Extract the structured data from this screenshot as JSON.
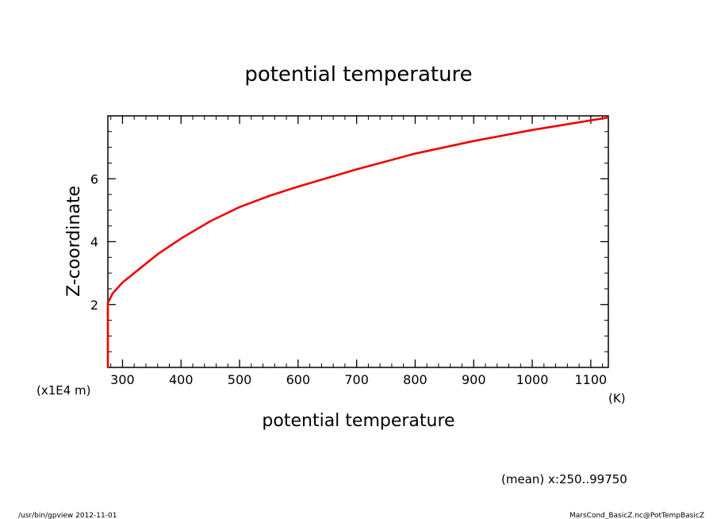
{
  "chart_data": {
    "type": "line",
    "title": "potential temperature",
    "xlabel": "potential temperature",
    "xunit": "(K)",
    "ylabel": "Z-coordinate",
    "yunit": "(x1E4 m)",
    "xlim": [
      275,
      1130
    ],
    "ylim": [
      0,
      8
    ],
    "xticks": [
      300,
      400,
      500,
      600,
      700,
      800,
      900,
      1000,
      1100
    ],
    "yticks": [
      2,
      4,
      6
    ],
    "grid": false,
    "series": [
      {
        "color": "#ee0000",
        "x": [
          275,
          275,
          275,
          283,
          300,
          330,
          360,
          400,
          450,
          500,
          550,
          600,
          700,
          800,
          900,
          1000,
          1130
        ],
        "y": [
          0,
          1.0,
          2.05,
          2.35,
          2.7,
          3.15,
          3.6,
          4.1,
          4.65,
          5.1,
          5.45,
          5.75,
          6.3,
          6.8,
          7.2,
          7.55,
          7.95
        ]
      }
    ]
  },
  "footer": {
    "mean_note": "(mean) x:250..99750",
    "left_note": "/usr/bin/gpview  2012-11-01",
    "right_note": "MarsCond_BasicZ.nc@PotTempBasicZ"
  }
}
